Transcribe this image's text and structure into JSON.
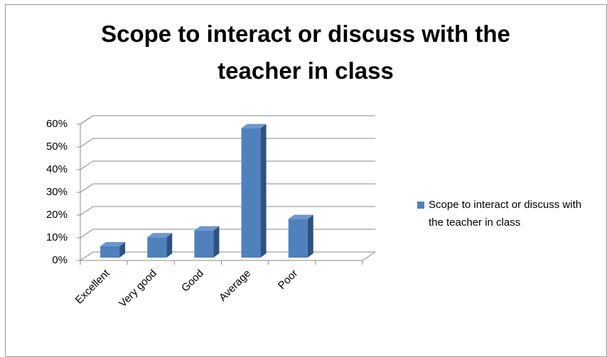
{
  "chart_data": {
    "type": "bar3d",
    "title": "Scope to interact or discuss with the teacher in class",
    "categories": [
      "Excellent",
      "Very good",
      "Good",
      "Average",
      "Poor",
      null
    ],
    "series": [
      {
        "name": "Scope to interact or discuss with the teacher in class",
        "color": "#4f81bd",
        "values": [
          5,
          9,
          12,
          57,
          17,
          null
        ]
      }
    ],
    "ylim": [
      0,
      60
    ],
    "yticks": [
      {
        "value": 0,
        "label": "0%"
      },
      {
        "value": 10,
        "label": "10%"
      },
      {
        "value": 20,
        "label": "20%"
      },
      {
        "value": 30,
        "label": "30%"
      },
      {
        "value": 40,
        "label": "40%"
      },
      {
        "value": 50,
        "label": "50%"
      },
      {
        "value": 60,
        "label": "60%"
      }
    ],
    "grid": true,
    "legend": "right"
  }
}
